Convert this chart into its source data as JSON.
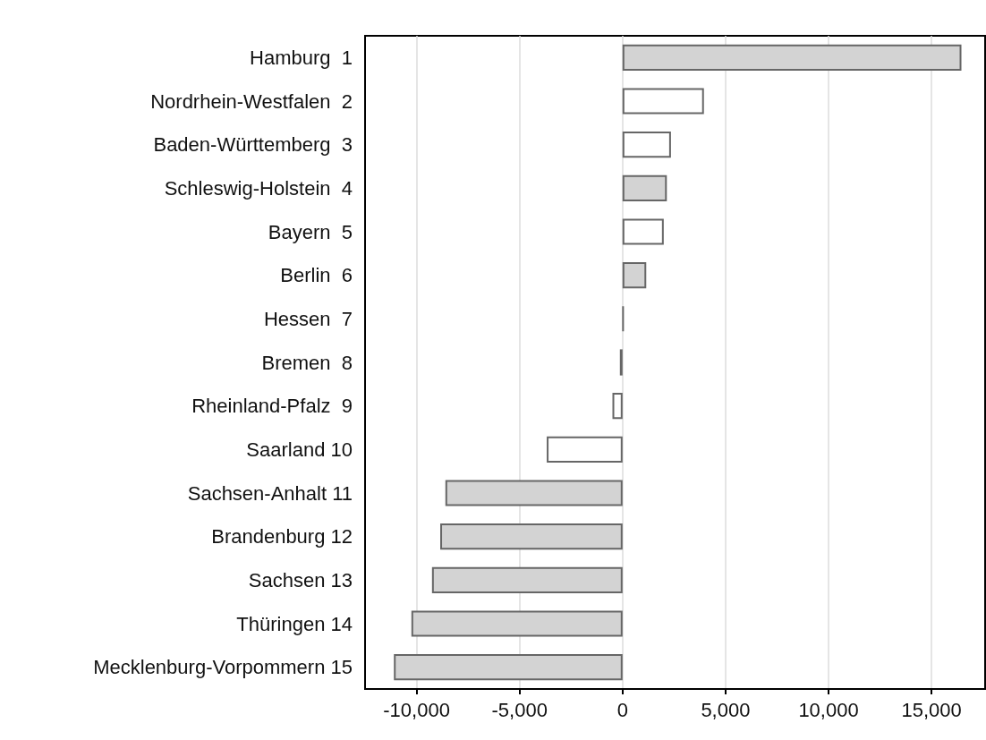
{
  "chart_data": {
    "type": "bar",
    "orientation": "horizontal",
    "categories": [
      "Hamburg  1",
      "Nordrhein-Westfalen  2",
      "Baden-Württemberg  3",
      "Schleswig-Holstein  4",
      "Bayern  5",
      "Berlin  6",
      "Hessen  7",
      "Bremen  8",
      "Rheinland-Pfalz  9",
      "Saarland 10",
      "Sachsen-Anhalt 11",
      "Brandenburg 12",
      "Sachsen 13",
      "Thüringen 14",
      "Mecklenburg-Vorpommern 15"
    ],
    "values": [
      16450,
      3950,
      2350,
      2150,
      2000,
      1150,
      50,
      -130,
      -490,
      -3680,
      -8600,
      -8850,
      -9250,
      -10250,
      -11100
    ],
    "colors": [
      "#d3d3d3",
      "#ffffff",
      "#ffffff",
      "#d3d3d3",
      "#ffffff",
      "#d3d3d3",
      "#666666",
      "#d3d3d3",
      "#ffffff",
      "#ffffff",
      "#d3d3d3",
      "#d3d3d3",
      "#d3d3d3",
      "#d3d3d3",
      "#d3d3d3"
    ],
    "xlim": [
      -12500,
      17600
    ],
    "xticks": [
      {
        "value": -10000,
        "label": "-10,000"
      },
      {
        "value": -5000,
        "label": "-5,000"
      },
      0,
      {
        "value": 5000,
        "label": "5,000"
      },
      {
        "value": 10000,
        "label": "10,000"
      },
      {
        "value": 15000,
        "label": "15,000"
      }
    ],
    "grid": "x"
  }
}
